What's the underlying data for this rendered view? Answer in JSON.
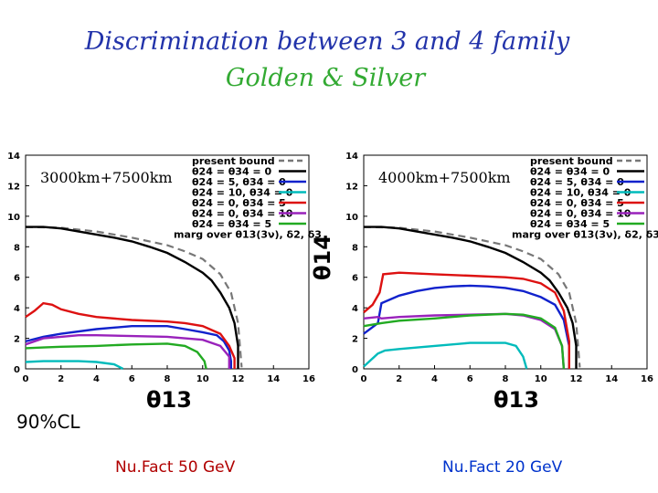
{
  "slide": {
    "title_line1": "Discrimination between 3 and 4 family",
    "title_line2": "Golden & Silver",
    "confidence_level": "90%CL",
    "left_caption": "Nu.Fact 50 GeV",
    "right_caption": "Nu.Fact 20 GeV",
    "x_axis_symbol": "θ13",
    "y_axis_symbol": "θ14"
  },
  "colors": {
    "title": "#2233aa",
    "subtitle": "#33aa33",
    "present_bound": "#777777",
    "s0": "#000000",
    "s1": "#1122cc",
    "s2": "#00bbbb",
    "s3": "#dd1111",
    "s4": "#9922bb",
    "s5": "#22aa22"
  },
  "chart_data": [
    {
      "type": "line",
      "annotation": "3000km+7500km",
      "marg_text": "marg over θ13(3ν), δ2, δ3",
      "xlim": [
        0,
        16
      ],
      "ylim": [
        0,
        14
      ],
      "x_ticks": [
        0,
        2,
        4,
        6,
        8,
        10,
        12,
        14,
        16
      ],
      "y_ticks": [
        0,
        2,
        4,
        6,
        8,
        10,
        12,
        14
      ],
      "legend_position": "top-right",
      "series": [
        {
          "name": "present bound",
          "color": "#777777",
          "dashed": true,
          "x": [
            0,
            2,
            4,
            6,
            8,
            9,
            10,
            11,
            11.6,
            12.0,
            12.2
          ],
          "y": [
            9.3,
            9.25,
            9.0,
            8.6,
            8.1,
            7.7,
            7.2,
            6.2,
            5.0,
            3.0,
            0.1
          ]
        },
        {
          "name": "θ24 = θ34 = 0",
          "color": "#000000",
          "x": [
            0,
            1,
            2,
            3,
            4,
            5,
            6,
            7,
            8,
            9,
            10,
            10.5,
            11,
            11.5,
            11.8,
            12.0,
            12.0
          ],
          "y": [
            9.3,
            9.3,
            9.2,
            9.0,
            8.8,
            8.6,
            8.35,
            8.0,
            7.6,
            7.0,
            6.3,
            5.8,
            5.0,
            4.0,
            3.0,
            1.5,
            0.0
          ]
        },
        {
          "name": "θ24 = 5, θ34 = 0",
          "color": "#1122cc",
          "x": [
            0,
            1,
            2,
            4,
            6,
            8,
            9,
            10,
            10.8,
            11.2,
            11.5,
            11.6,
            11.6
          ],
          "y": [
            1.8,
            2.1,
            2.3,
            2.6,
            2.8,
            2.8,
            2.6,
            2.4,
            2.2,
            1.8,
            1.2,
            0.5,
            0.0
          ]
        },
        {
          "name": "θ24 = 10, θ34 = 0",
          "color": "#00bbbb",
          "x": [
            0,
            1,
            2,
            3,
            4,
            5,
            5.5
          ],
          "y": [
            0.45,
            0.5,
            0.5,
            0.5,
            0.45,
            0.3,
            0.0
          ]
        },
        {
          "name": "θ24 = 0, θ34 = 5",
          "color": "#dd1111",
          "x": [
            0,
            0.5,
            1,
            1.5,
            2,
            3,
            4,
            6,
            8,
            9,
            10,
            11,
            11.5,
            11.8,
            11.8
          ],
          "y": [
            3.4,
            3.8,
            4.3,
            4.2,
            3.9,
            3.6,
            3.4,
            3.2,
            3.1,
            3.0,
            2.8,
            2.3,
            1.5,
            0.7,
            0.0
          ]
        },
        {
          "name": "θ24 = 0, θ34 = 10",
          "color": "#9922bb",
          "x": [
            0,
            1,
            2,
            3,
            4,
            6,
            8,
            10,
            11,
            11.5,
            11.5
          ],
          "y": [
            1.6,
            2.0,
            2.1,
            2.2,
            2.2,
            2.15,
            2.1,
            1.9,
            1.5,
            0.8,
            0.0
          ]
        },
        {
          "name": "θ24 = θ34 = 5",
          "color": "#22aa22",
          "x": [
            0,
            1,
            2,
            4,
            6,
            8,
            9,
            9.7,
            10.1,
            10.2
          ],
          "y": [
            1.35,
            1.4,
            1.45,
            1.5,
            1.6,
            1.65,
            1.5,
            1.1,
            0.5,
            0.0
          ]
        }
      ]
    },
    {
      "type": "line",
      "annotation": "4000km+7500km",
      "marg_text": "marg over θ13(3ν), δ2, δ3",
      "xlim": [
        0,
        16
      ],
      "ylim": [
        0,
        14
      ],
      "x_ticks": [
        0,
        2,
        4,
        6,
        8,
        10,
        12,
        14,
        16
      ],
      "y_ticks": [
        0,
        2,
        4,
        6,
        8,
        10,
        12,
        14
      ],
      "legend_position": "top-right",
      "series": [
        {
          "name": "present bound",
          "color": "#777777",
          "dashed": true,
          "x": [
            0,
            2,
            4,
            6,
            8,
            9,
            10,
            11,
            11.6,
            12.0,
            12.2
          ],
          "y": [
            9.3,
            9.25,
            9.0,
            8.6,
            8.1,
            7.7,
            7.2,
            6.2,
            5.0,
            3.0,
            0.1
          ]
        },
        {
          "name": "θ24 = θ34 = 0",
          "color": "#000000",
          "x": [
            0,
            1,
            2,
            3,
            4,
            5,
            6,
            7,
            8,
            9,
            10,
            10.5,
            11,
            11.5,
            11.8,
            12.0,
            12.0
          ],
          "y": [
            9.3,
            9.3,
            9.2,
            9.0,
            8.8,
            8.6,
            8.35,
            8.0,
            7.6,
            7.0,
            6.3,
            5.8,
            5.0,
            4.0,
            3.0,
            1.5,
            0.0
          ]
        },
        {
          "name": "θ24 = 5, θ34 = 0",
          "color": "#1122cc",
          "x": [
            0,
            0.8,
            1.0,
            2,
            3,
            4,
            5,
            6,
            7,
            8,
            9,
            10,
            10.8,
            11.3,
            11.6,
            11.6
          ],
          "y": [
            2.3,
            3.0,
            4.3,
            4.8,
            5.1,
            5.3,
            5.4,
            5.45,
            5.4,
            5.3,
            5.1,
            4.7,
            4.2,
            3.2,
            1.5,
            0.0
          ]
        },
        {
          "name": "θ24 = 10, θ34 = 0",
          "color": "#00bbbb",
          "x": [
            0,
            0.8,
            1.2,
            2,
            4,
            6,
            8,
            8.6,
            9.0,
            9.2
          ],
          "y": [
            0.15,
            1.0,
            1.2,
            1.3,
            1.5,
            1.7,
            1.7,
            1.5,
            0.8,
            0.0
          ]
        },
        {
          "name": "θ24 = 0, θ34 = 5",
          "color": "#dd1111",
          "x": [
            0,
            0.5,
            0.9,
            1.1,
            2,
            4,
            6,
            8,
            9,
            10,
            10.8,
            11.3,
            11.6,
            11.6
          ],
          "y": [
            3.7,
            4.2,
            5.0,
            6.2,
            6.3,
            6.2,
            6.1,
            6.0,
            5.9,
            5.6,
            5.0,
            3.8,
            1.8,
            0.0
          ]
        },
        {
          "name": "θ24 = 0, θ34 = 10",
          "color": "#9922bb",
          "x": [
            0,
            0.8,
            1.0,
            2,
            4,
            6,
            8,
            9,
            10,
            10.8,
            11.2,
            11.3
          ],
          "y": [
            3.3,
            3.4,
            3.3,
            3.4,
            3.5,
            3.55,
            3.6,
            3.5,
            3.2,
            2.6,
            1.5,
            0.0
          ]
        },
        {
          "name": "θ24 = θ34 = 5",
          "color": "#22aa22",
          "x": [
            0,
            1,
            2,
            4,
            6,
            8,
            9,
            10,
            10.8,
            11.2,
            11.3
          ],
          "y": [
            2.8,
            3.0,
            3.15,
            3.3,
            3.5,
            3.6,
            3.55,
            3.3,
            2.7,
            1.5,
            0.0
          ]
        }
      ]
    }
  ]
}
